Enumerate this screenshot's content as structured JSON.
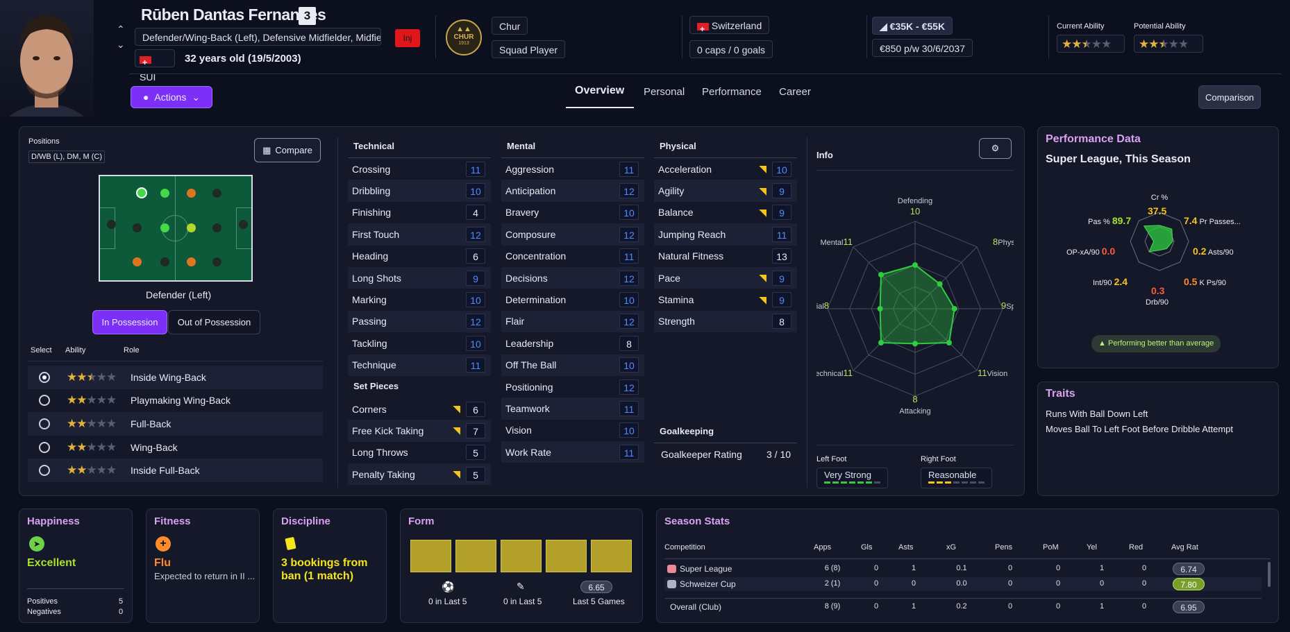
{
  "header": {
    "name": "Rūben Dantas Fernandes",
    "number": "3",
    "positions": "Defender/Wing-Back (Left), Defensive Midfielder, Midfiel...",
    "inj": "Inj",
    "nationality": "SUI",
    "age": "32 years old (19/5/2003)",
    "club": "Chur",
    "club_logo_text": "CHUR",
    "club_logo_year": "1913",
    "squad_status": "Squad Player",
    "country": "Switzerland",
    "caps": "0 caps / 0 goals",
    "value": "€35K - €55K",
    "wage": "€850 p/w",
    "contract": "30/6/2037",
    "current_ability_label": "Current Ability",
    "potential_ability_label": "Potential Ability",
    "current_ability_stars": 2.5,
    "potential_ability_stars": 2.5,
    "actions_label": "Actions",
    "comparison_label": "Comparison"
  },
  "tabs": [
    "Overview",
    "Personal",
    "Performance",
    "Career"
  ],
  "positions_panel": {
    "label": "Positions",
    "value": "D/WB (L), DM, M (C)",
    "compare_label": "Compare",
    "selected_position": "Defender (Left)",
    "in_possession": "In Possession",
    "out_of_possession": "Out of Possession",
    "col_select": "Select",
    "col_ability": "Ability",
    "col_role": "Role",
    "roles": [
      {
        "name": "Inside Wing-Back",
        "stars": 2.5,
        "selected": true
      },
      {
        "name": "Playmaking Wing-Back",
        "stars": 2,
        "selected": false
      },
      {
        "name": "Full-Back",
        "stars": 2,
        "selected": false
      },
      {
        "name": "Wing-Back",
        "stars": 2,
        "selected": false
      },
      {
        "name": "Inside Full-Back",
        "stars": 2,
        "selected": false
      }
    ]
  },
  "attributes": {
    "technical_title": "Technical",
    "technical": [
      [
        "Crossing",
        "11"
      ],
      [
        "Dribbling",
        "10"
      ],
      [
        "Finishing",
        "4"
      ],
      [
        "First Touch",
        "12"
      ],
      [
        "Heading",
        "6"
      ],
      [
        "Long Shots",
        "9"
      ],
      [
        "Marking",
        "10"
      ],
      [
        "Passing",
        "12"
      ],
      [
        "Tackling",
        "10"
      ],
      [
        "Technique",
        "11"
      ]
    ],
    "set_pieces_title": "Set Pieces",
    "set_pieces": [
      [
        "Corners",
        "6"
      ],
      [
        "Free Kick Taking",
        "7"
      ],
      [
        "Long Throws",
        "5"
      ],
      [
        "Penalty Taking",
        "5"
      ]
    ],
    "mental_title": "Mental",
    "mental": [
      [
        "Aggression",
        "11"
      ],
      [
        "Anticipation",
        "12"
      ],
      [
        "Bravery",
        "10"
      ],
      [
        "Composure",
        "12"
      ],
      [
        "Concentration",
        "11"
      ],
      [
        "Decisions",
        "12"
      ],
      [
        "Determination",
        "10"
      ],
      [
        "Flair",
        "12"
      ],
      [
        "Leadership",
        "8"
      ],
      [
        "Off The Ball",
        "10"
      ],
      [
        "Positioning",
        "12"
      ],
      [
        "Teamwork",
        "11"
      ],
      [
        "Vision",
        "10"
      ],
      [
        "Work Rate",
        "11"
      ]
    ],
    "physical_title": "Physical",
    "physical": [
      [
        "Acceleration",
        "10"
      ],
      [
        "Agility",
        "9"
      ],
      [
        "Balance",
        "9"
      ],
      [
        "Jumping Reach",
        "11"
      ],
      [
        "Natural Fitness",
        "13"
      ],
      [
        "Pace",
        "9"
      ],
      [
        "Stamina",
        "9"
      ],
      [
        "Strength",
        "8"
      ]
    ],
    "goalkeeping_title": "Goalkeeping",
    "gk_label": "Goalkeeper Rating",
    "gk_value": "3 / 10"
  },
  "info": {
    "title": "Info",
    "radar": [
      {
        "label": "Defending",
        "value": "10"
      },
      {
        "label": "Physical",
        "value": "8"
      },
      {
        "label": "Speed",
        "value": "9"
      },
      {
        "label": "Vision",
        "value": "11"
      },
      {
        "label": "Attacking",
        "value": "8"
      },
      {
        "label": "Technical",
        "value": "11"
      },
      {
        "label": "Aerial",
        "value": "8"
      },
      {
        "label": "Mental",
        "value": "11"
      }
    ],
    "left_foot_label": "Left Foot",
    "left_foot": "Very Strong",
    "left_foot_level": 6,
    "right_foot_label": "Right Foot",
    "right_foot": "Reasonable",
    "right_foot_level": 3
  },
  "performance": {
    "title": "Performance Data",
    "subtitle": "Super League, This Season",
    "stats": [
      {
        "label": "Cr %",
        "value": "37.5"
      },
      {
        "label": "Pr Passes...",
        "value": "7.4"
      },
      {
        "label": "Asts/90",
        "value": "0.2"
      },
      {
        "label": "K Ps/90",
        "value": "0.5"
      },
      {
        "label": "Drb/90",
        "value": "0.3"
      },
      {
        "label": "Int/90",
        "value": "2.4"
      },
      {
        "label": "OP-xA/90",
        "value": "0.0"
      },
      {
        "label": "Pas %",
        "value": "89.7"
      }
    ],
    "badge": "Performing better than average"
  },
  "traits": {
    "title": "Traits",
    "items": [
      "Runs With Ball Down Left",
      "Moves Ball To Left Foot Before Dribble Attempt"
    ]
  },
  "happiness": {
    "title": "Happiness",
    "status": "Excellent",
    "positives_label": "Positives",
    "positives": "5",
    "negatives_label": "Negatives",
    "negatives": "0"
  },
  "fitness": {
    "title": "Fitness",
    "status": "Flu",
    "note": "Expected to return in II ..."
  },
  "discipline": {
    "title": "Discipline",
    "status": "3 bookings from ban (1 match)"
  },
  "form": {
    "title": "Form",
    "goals": "0 in Last 5",
    "assists": "0 in Last 5",
    "rating": "6.65",
    "rating_label": "Last 5 Games"
  },
  "season_stats": {
    "title": "Season Stats",
    "columns": [
      "Competition",
      "Apps",
      "Gls",
      "Asts",
      "xG",
      "Pens",
      "PoM",
      "Yel",
      "Red",
      "Avg Rat"
    ],
    "rows": [
      [
        "Super League",
        "6 (8)",
        "0",
        "1",
        "0.1",
        "0",
        "0",
        "1",
        "0",
        "6.74"
      ],
      [
        "Schweizer Cup",
        "2 (1)",
        "0",
        "0",
        "0.0",
        "0",
        "0",
        "0",
        "0",
        "7.80"
      ],
      [
        "Overall (Club)",
        "8 (9)",
        "0",
        "1",
        "0.2",
        "0",
        "0",
        "1",
        "0",
        "6.95"
      ]
    ]
  },
  "colors": {
    "accent": "#7b2ff7",
    "title": "#d9a2f0",
    "attr_value": "#4f8cff",
    "green": "#2ecc40",
    "good": "#a6e22e"
  }
}
